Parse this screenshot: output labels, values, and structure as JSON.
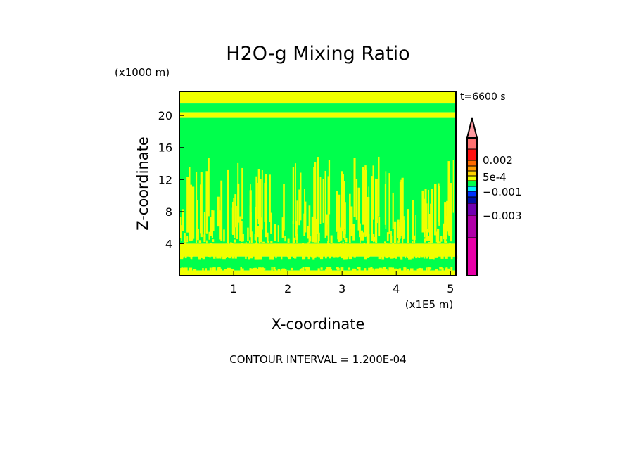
{
  "chart_data": {
    "type": "heatmap",
    "title": "H2O-g Mixing Ratio",
    "xlabel": "X-coordinate",
    "ylabel": "Z-coordinate",
    "x_units": "(x1E5 m)",
    "y_units": "(x1000 m)",
    "time_label": "t=6600 s",
    "footer": "CONTOUR INTERVAL = 1.200E-04",
    "xlim": [
      0,
      5.1
    ],
    "ylim": [
      0,
      23
    ],
    "xticks": [
      1,
      2,
      3,
      4,
      5
    ],
    "yticks": [
      4,
      8,
      12,
      16,
      20
    ],
    "field_colors": {
      "yellow": "#f0ff00",
      "green": "#00ff4c"
    },
    "bands": [
      {
        "z0": 21.5,
        "z1": 23,
        "color": "#f0ff00"
      },
      {
        "z0": 20.4,
        "z1": 21.5,
        "color": "#00ff4c"
      },
      {
        "z0": 19.7,
        "z1": 20.4,
        "color": "#f0ff00"
      },
      {
        "z0": 4.0,
        "z1": 19.7,
        "color": "#00ff4c"
      },
      {
        "z0": 2.4,
        "z1": 4.0,
        "color": "#f0ff00"
      },
      {
        "z0": 0.65,
        "z1": 2.4,
        "color": "#00ff4c"
      },
      {
        "z0": 0,
        "z1": 0.65,
        "color": "#f0ff00"
      }
    ],
    "streaks": {
      "z_base": 4.0,
      "z_max": 15.0,
      "count": 260,
      "color": "#f0ff00"
    },
    "colorbar": {
      "colors": [
        "#ff9aa0",
        "#ff7070",
        "#ff1010",
        "#ff6a00",
        "#ff9c00",
        "#ffd200",
        "#f0ff00",
        "#00ff4c",
        "#00f0ff",
        "#0030ff",
        "#000fa8",
        "#7000b0",
        "#b000a8",
        "#e800a8"
      ],
      "labels": [
        {
          "text": "0.002",
          "level": 0.002
        },
        {
          "text": "5e-4",
          "level": 0.0005
        },
        {
          "text": "−0.001",
          "level": -0.001
        },
        {
          "text": "−0.003",
          "level": -0.003
        }
      ]
    }
  }
}
